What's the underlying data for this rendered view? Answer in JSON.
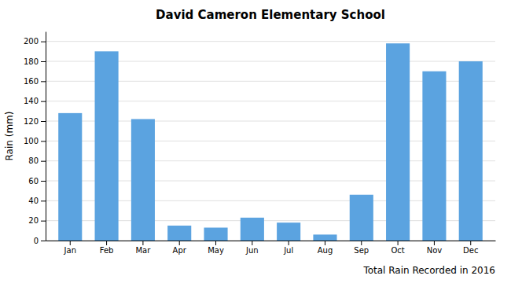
{
  "chart_data": {
    "type": "bar",
    "title": "David Cameron Elementary School",
    "xlabel": "Total Rain Recorded in 2016",
    "ylabel": "Rain (mm)",
    "categories": [
      "Jan",
      "Feb",
      "Mar",
      "Apr",
      "May",
      "Jun",
      "Jul",
      "Aug",
      "Sep",
      "Oct",
      "Nov",
      "Dec"
    ],
    "values": [
      128,
      190,
      122,
      15,
      13,
      23,
      18,
      6,
      46,
      198,
      170,
      180
    ],
    "color": "#5BA3E0",
    "ylim": [
      0,
      210
    ],
    "yticks": [
      0,
      20,
      40,
      60,
      80,
      100,
      120,
      140,
      160,
      180,
      200
    ],
    "grid": true
  }
}
